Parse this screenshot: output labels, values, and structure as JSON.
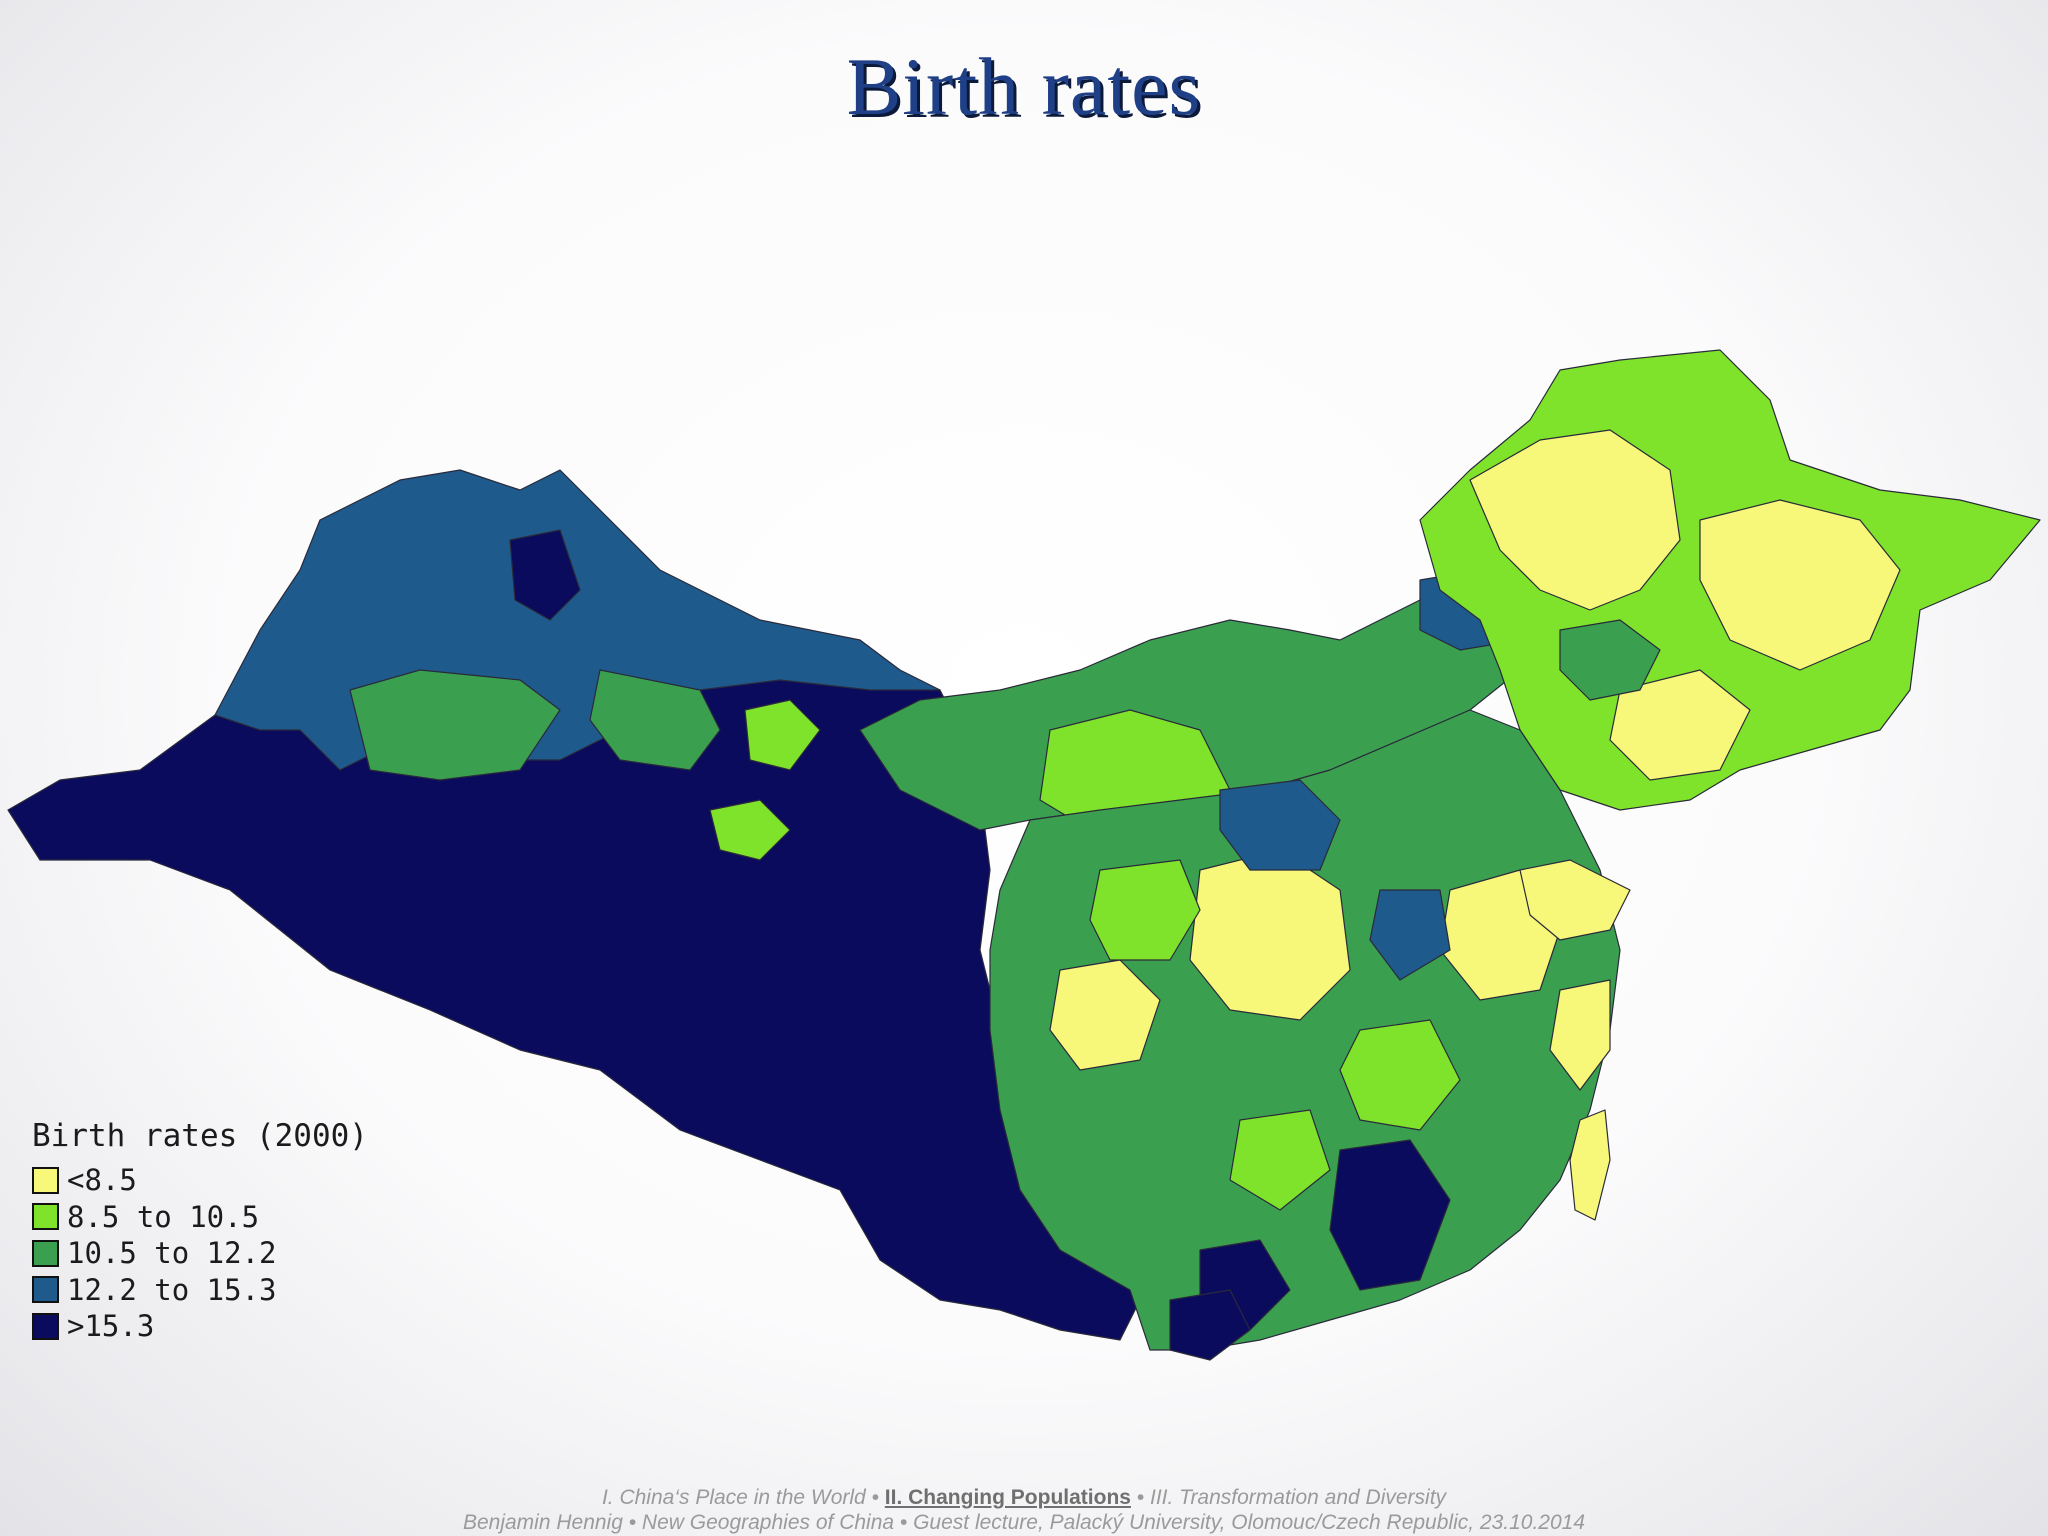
{
  "title": "Birth rates",
  "legend": {
    "title": "Birth rates (2000)",
    "classes": [
      {
        "label": "<8.5",
        "color": "#f7f77a"
      },
      {
        "label": "8.5 to 10.5",
        "color": "#7ee32a"
      },
      {
        "label": "10.5 to 12.2",
        "color": "#3aa050"
      },
      {
        "label": "12.2 to 15.3",
        "color": "#1e5a8c"
      },
      {
        "label": ">15.3",
        "color": "#0b0b5e"
      }
    ]
  },
  "footer": {
    "sep": "•",
    "part1": "I. China‘s Place in the World",
    "part2": "II. Changing Populations",
    "part3": "III. Transformation and Diversity",
    "line2": "Benjamin Hennig • New Geographies of China • Guest lecture, Palacký University, Olomouc/Czech Republic, 23.10.2014"
  }
}
